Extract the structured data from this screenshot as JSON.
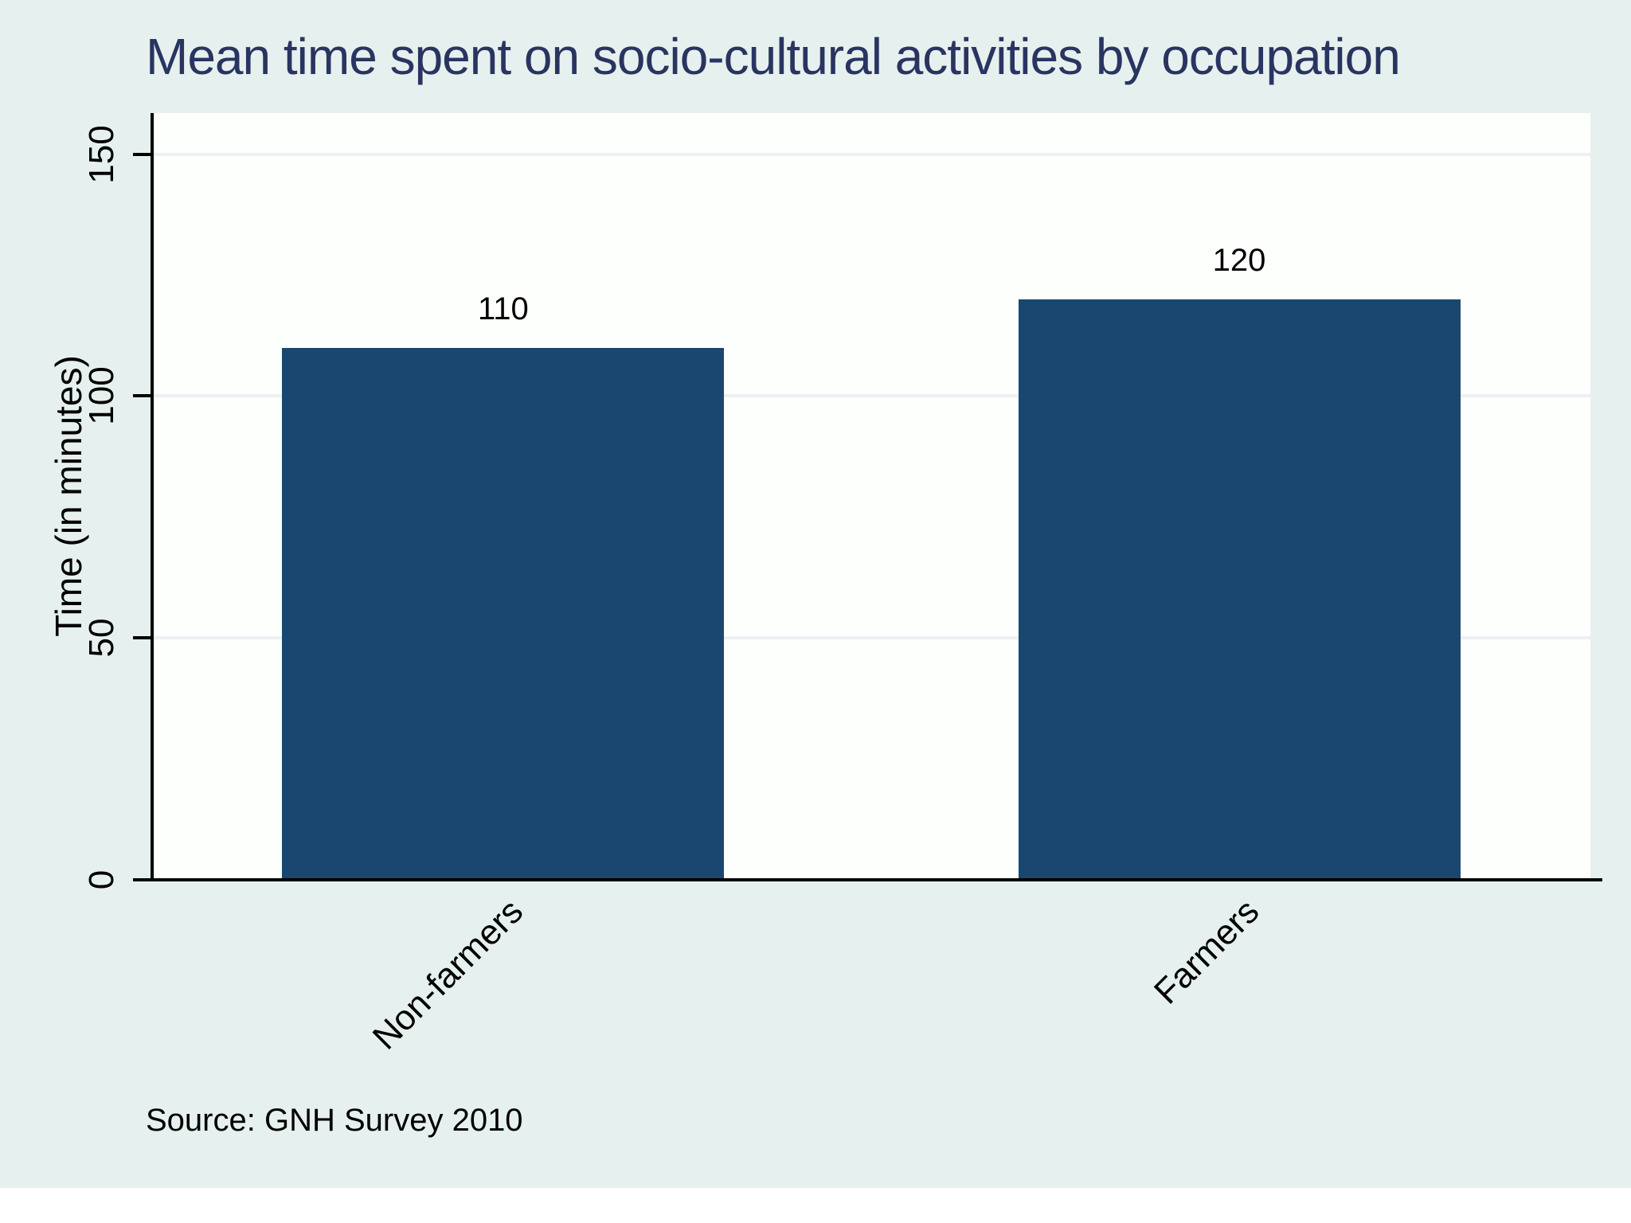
{
  "chart_data": {
    "type": "bar",
    "title": "Mean time spent on socio-cultural activities by occupation",
    "categories": [
      "Non-farmers",
      "Farmers"
    ],
    "values": [
      110,
      120
    ],
    "bar_labels": [
      "110",
      "120"
    ],
    "xlabel": "",
    "ylabel": "Time (in minutes)",
    "yticks": [
      0,
      50,
      100,
      150
    ],
    "ylim": [
      0,
      158.5
    ],
    "grid": true,
    "legend_position": "none",
    "source_note": "Source: GNH Survey 2010",
    "colors": {
      "bar": "#1a476f",
      "title": "#293560",
      "background": "#e6f0ee",
      "plot_background": "#fdfffd",
      "gridline": "#edeff4",
      "axis": "#000000",
      "text": "#000000"
    }
  }
}
